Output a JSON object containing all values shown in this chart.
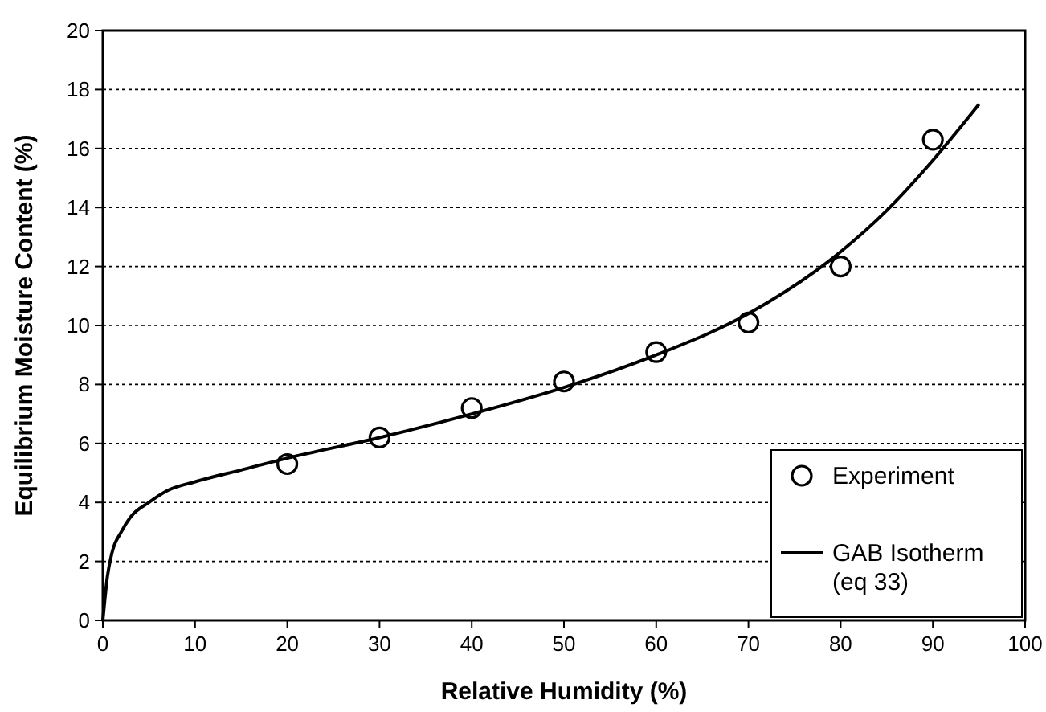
{
  "chart_data": {
    "type": "scatter",
    "xlabel": "Relative Humidity (%)",
    "ylabel": "Equilibrium Moisture Content (%)",
    "xlim": [
      0,
      100
    ],
    "xticks": [
      0,
      10,
      20,
      30,
      40,
      50,
      60,
      70,
      80,
      90,
      100
    ],
    "ylim": [
      0,
      20
    ],
    "yticks": [
      0,
      2,
      4,
      6,
      8,
      10,
      12,
      14,
      16,
      18,
      20
    ],
    "grid": "y",
    "legend": "bottom right",
    "series": [
      {
        "name": "Experiment",
        "marker": "circle",
        "color": "#000000",
        "x": [
          20,
          30,
          40,
          50,
          60,
          70,
          80,
          90
        ],
        "values": [
          5.3,
          6.2,
          7.2,
          8.1,
          9.1,
          10.1,
          12.0,
          16.3
        ]
      },
      {
        "name": "GAB Isotherm (eq 33)",
        "type": "line",
        "marker": "none",
        "line_style": "solid",
        "color": "#000000",
        "x": [
          0,
          0.5,
          1,
          2,
          3,
          5,
          7,
          10,
          15,
          20,
          30,
          40,
          50,
          60,
          70,
          80,
          85,
          90,
          95
        ],
        "values": [
          0,
          1.5,
          2.3,
          3.0,
          3.5,
          4.0,
          4.4,
          4.7,
          5.1,
          5.5,
          6.2,
          7.0,
          7.9,
          9.0,
          10.4,
          12.5,
          13.9,
          15.6,
          17.5
        ]
      }
    ]
  }
}
